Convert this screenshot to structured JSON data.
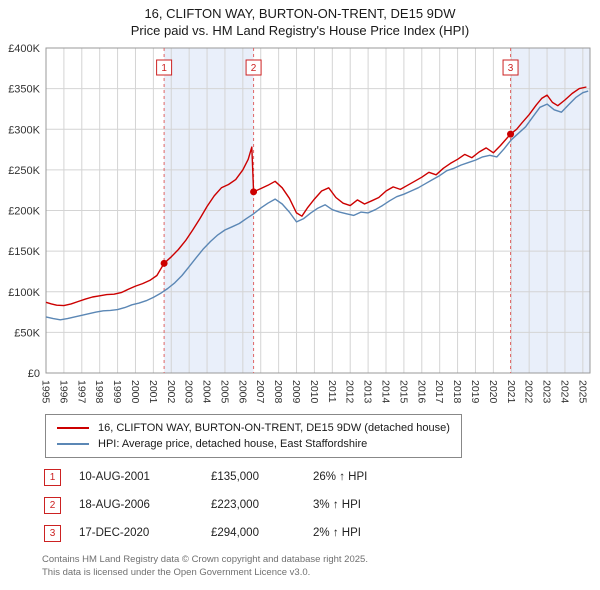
{
  "title": "16, CLIFTON WAY, BURTON-ON-TRENT, DE15 9DW",
  "subtitle": "Price paid vs. HM Land Registry's House Price Index (HPI)",
  "chart_data": {
    "type": "line",
    "xlim": [
      1995,
      2025.4
    ],
    "ylim": [
      0,
      400000
    ],
    "grid": true,
    "x_ticks": [
      "1995",
      "1996",
      "1997",
      "1998",
      "1999",
      "2000",
      "2001",
      "2002",
      "2003",
      "2004",
      "2005",
      "2006",
      "2007",
      "2008",
      "2009",
      "2010",
      "2011",
      "2012",
      "2013",
      "2014",
      "2015",
      "2016",
      "2017",
      "2018",
      "2019",
      "2020",
      "2021",
      "2022",
      "2023",
      "2024",
      "2025"
    ],
    "y_ticks": [
      {
        "label": "£0",
        "value": 0
      },
      {
        "label": "£50K",
        "value": 50000
      },
      {
        "label": "£100K",
        "value": 100000
      },
      {
        "label": "£150K",
        "value": 150000
      },
      {
        "label": "£200K",
        "value": 200000
      },
      {
        "label": "£250K",
        "value": 250000
      },
      {
        "label": "£300K",
        "value": 300000
      },
      {
        "label": "£350K",
        "value": 350000
      },
      {
        "label": "£400K",
        "value": 400000
      }
    ],
    "band_color": "#e9effa",
    "bands": [
      {
        "from": 2001.6,
        "to": 2006.6
      },
      {
        "from": 2020.96,
        "to": 2025.4
      }
    ],
    "markers": [
      {
        "n": "1",
        "year": 2001.6,
        "value": 135000
      },
      {
        "n": "2",
        "year": 2006.6,
        "value": 223000
      },
      {
        "n": "3",
        "year": 2020.96,
        "value": 294000
      }
    ],
    "series": [
      {
        "name": "16, CLIFTON WAY, BURTON-ON-TRENT, DE15 9DW (detached house)",
        "color": "#cc0000",
        "points": [
          [
            1995.0,
            87000
          ],
          [
            1995.3,
            85000
          ],
          [
            1995.6,
            83500
          ],
          [
            1996.0,
            83000
          ],
          [
            1996.4,
            85000
          ],
          [
            1996.8,
            88000
          ],
          [
            1997.2,
            91000
          ],
          [
            1997.6,
            93500
          ],
          [
            1998.0,
            95000
          ],
          [
            1998.4,
            96500
          ],
          [
            1998.8,
            97000
          ],
          [
            1999.2,
            99000
          ],
          [
            1999.6,
            103000
          ],
          [
            2000.0,
            107000
          ],
          [
            2000.4,
            110000
          ],
          [
            2000.8,
            114000
          ],
          [
            2001.2,
            120000
          ],
          [
            2001.6,
            135000
          ],
          [
            2002.0,
            143000
          ],
          [
            2002.4,
            152000
          ],
          [
            2002.8,
            163000
          ],
          [
            2003.2,
            176000
          ],
          [
            2003.6,
            190000
          ],
          [
            2004.0,
            205000
          ],
          [
            2004.4,
            218000
          ],
          [
            2004.8,
            228000
          ],
          [
            2005.2,
            232000
          ],
          [
            2005.6,
            238000
          ],
          [
            2006.0,
            250000
          ],
          [
            2006.3,
            263000
          ],
          [
            2006.5,
            278000
          ],
          [
            2006.6,
            223000
          ],
          [
            2007.0,
            227000
          ],
          [
            2007.4,
            231000
          ],
          [
            2007.8,
            236000
          ],
          [
            2008.2,
            228000
          ],
          [
            2008.6,
            215000
          ],
          [
            2009.0,
            197000
          ],
          [
            2009.3,
            193000
          ],
          [
            2009.6,
            203000
          ],
          [
            2010.0,
            214000
          ],
          [
            2010.4,
            224000
          ],
          [
            2010.8,
            228000
          ],
          [
            2011.2,
            216000
          ],
          [
            2011.6,
            209000
          ],
          [
            2012.0,
            206000
          ],
          [
            2012.4,
            213000
          ],
          [
            2012.8,
            208000
          ],
          [
            2013.2,
            212000
          ],
          [
            2013.6,
            216000
          ],
          [
            2014.0,
            224000
          ],
          [
            2014.4,
            229000
          ],
          [
            2014.8,
            226000
          ],
          [
            2015.2,
            231000
          ],
          [
            2015.6,
            236000
          ],
          [
            2016.0,
            241000
          ],
          [
            2016.4,
            247000
          ],
          [
            2016.8,
            244000
          ],
          [
            2017.2,
            252000
          ],
          [
            2017.6,
            258000
          ],
          [
            2018.0,
            263000
          ],
          [
            2018.4,
            269000
          ],
          [
            2018.8,
            265000
          ],
          [
            2019.2,
            272000
          ],
          [
            2019.6,
            277000
          ],
          [
            2020.0,
            271000
          ],
          [
            2020.4,
            280000
          ],
          [
            2020.96,
            294000
          ],
          [
            2021.3,
            300000
          ],
          [
            2021.6,
            308000
          ],
          [
            2022.0,
            318000
          ],
          [
            2022.4,
            330000
          ],
          [
            2022.7,
            338000
          ],
          [
            2023.0,
            342000
          ],
          [
            2023.3,
            333000
          ],
          [
            2023.6,
            329000
          ],
          [
            2024.0,
            336000
          ],
          [
            2024.4,
            344000
          ],
          [
            2024.8,
            350000
          ],
          [
            2025.2,
            352000
          ]
        ]
      },
      {
        "name": "HPI: Average price, detached house, East Staffordshire",
        "color": "#5b87b5",
        "points": [
          [
            1995.0,
            69000
          ],
          [
            1995.4,
            67000
          ],
          [
            1995.8,
            65500
          ],
          [
            1996.2,
            67000
          ],
          [
            1996.6,
            69000
          ],
          [
            1997.0,
            71000
          ],
          [
            1997.4,
            73000
          ],
          [
            1997.8,
            75000
          ],
          [
            1998.2,
            76500
          ],
          [
            1998.6,
            77000
          ],
          [
            1999.0,
            78000
          ],
          [
            1999.4,
            80500
          ],
          [
            1999.8,
            84000
          ],
          [
            2000.2,
            86000
          ],
          [
            2000.6,
            89000
          ],
          [
            2001.0,
            93000
          ],
          [
            2001.4,
            98000
          ],
          [
            2001.8,
            104000
          ],
          [
            2002.2,
            111000
          ],
          [
            2002.6,
            120000
          ],
          [
            2003.0,
            131000
          ],
          [
            2003.4,
            142000
          ],
          [
            2003.8,
            153000
          ],
          [
            2004.2,
            162000
          ],
          [
            2004.6,
            170000
          ],
          [
            2005.0,
            176000
          ],
          [
            2005.4,
            180000
          ],
          [
            2005.8,
            184000
          ],
          [
            2006.2,
            190000
          ],
          [
            2006.6,
            196000
          ],
          [
            2007.0,
            203000
          ],
          [
            2007.4,
            209000
          ],
          [
            2007.8,
            214000
          ],
          [
            2008.2,
            208000
          ],
          [
            2008.6,
            198000
          ],
          [
            2009.0,
            186000
          ],
          [
            2009.4,
            190000
          ],
          [
            2009.8,
            197000
          ],
          [
            2010.2,
            203000
          ],
          [
            2010.6,
            207000
          ],
          [
            2011.0,
            201000
          ],
          [
            2011.4,
            198000
          ],
          [
            2011.8,
            196000
          ],
          [
            2012.2,
            194000
          ],
          [
            2012.6,
            198000
          ],
          [
            2013.0,
            197000
          ],
          [
            2013.4,
            201000
          ],
          [
            2013.8,
            206000
          ],
          [
            2014.2,
            212000
          ],
          [
            2014.6,
            217000
          ],
          [
            2015.0,
            220000
          ],
          [
            2015.4,
            224000
          ],
          [
            2015.8,
            228000
          ],
          [
            2016.2,
            233000
          ],
          [
            2016.6,
            238000
          ],
          [
            2017.0,
            243000
          ],
          [
            2017.4,
            249000
          ],
          [
            2017.8,
            252000
          ],
          [
            2018.2,
            256000
          ],
          [
            2018.6,
            259000
          ],
          [
            2019.0,
            262000
          ],
          [
            2019.4,
            266000
          ],
          [
            2019.8,
            268000
          ],
          [
            2020.2,
            266000
          ],
          [
            2020.6,
            276000
          ],
          [
            2021.0,
            287000
          ],
          [
            2021.4,
            295000
          ],
          [
            2021.8,
            303000
          ],
          [
            2022.2,
            315000
          ],
          [
            2022.6,
            327000
          ],
          [
            2023.0,
            331000
          ],
          [
            2023.4,
            324000
          ],
          [
            2023.8,
            321000
          ],
          [
            2024.2,
            330000
          ],
          [
            2024.6,
            339000
          ],
          [
            2025.0,
            345000
          ],
          [
            2025.3,
            347000
          ]
        ]
      }
    ]
  },
  "legend": {
    "items": [
      {
        "label": "16, CLIFTON WAY, BURTON-ON-TRENT, DE15 9DW (detached house)",
        "color": "#cc0000"
      },
      {
        "label": "HPI: Average price, detached house, East Staffordshire",
        "color": "#5b87b5"
      }
    ]
  },
  "transactions": [
    {
      "num": "1",
      "date": "10-AUG-2001",
      "price": "£135,000",
      "hpi": "26% ↑ HPI"
    },
    {
      "num": "2",
      "date": "18-AUG-2006",
      "price": "£223,000",
      "hpi": "3% ↑ HPI"
    },
    {
      "num": "3",
      "date": "17-DEC-2020",
      "price": "£294,000",
      "hpi": "2% ↑ HPI"
    }
  ],
  "footer": {
    "line1": "Contains HM Land Registry data © Crown copyright and database right 2025.",
    "line2": "This data is licensed under the Open Government Licence v3.0."
  }
}
